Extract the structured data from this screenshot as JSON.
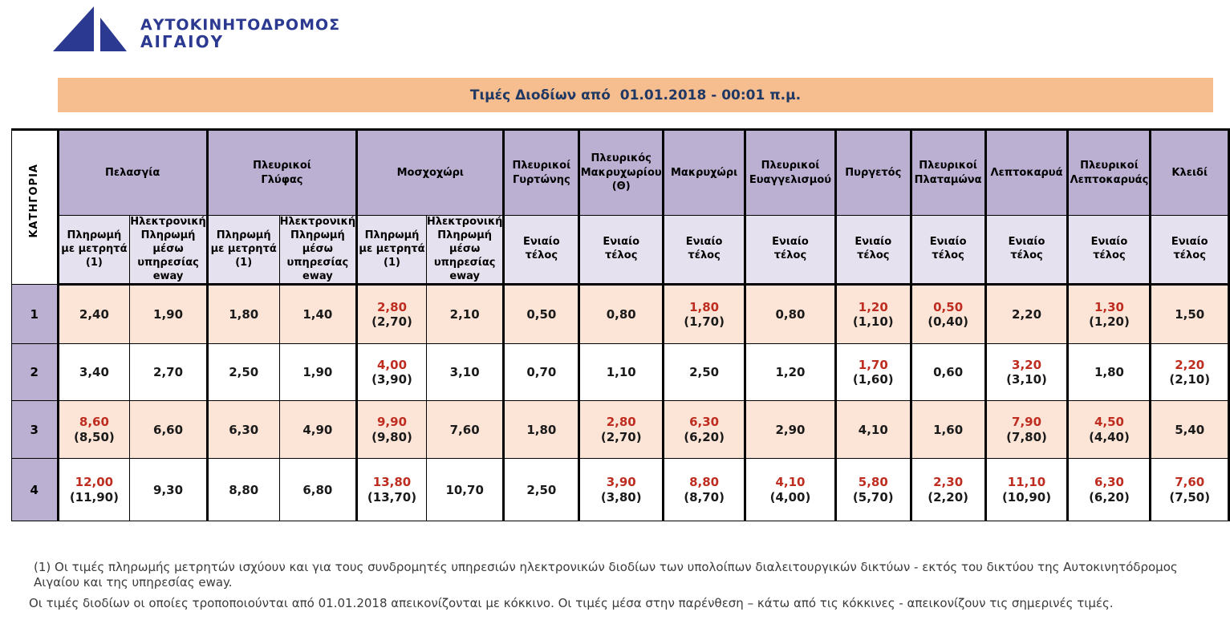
{
  "logo": {
    "line1": "ΑΥΤΟΚΙΝΗΤΟΔΡΟΜΟΣ",
    "line2": "ΑΙΓΑΙΟΥ"
  },
  "title": "Τιμές Διοδίων από  01.01.2018 - 00:01 π.μ.",
  "colors": {
    "title_bar_bg": "#F6BD8E",
    "station_header_bg": "#BCB0D2",
    "subheader_bg": "#E6E1EE",
    "odd_row_bg": "#FCE4D6",
    "even_row_bg": "#FFFFFF",
    "changed_price_red": "#BE2D20",
    "logo_navy": "#2B3991",
    "title_text_navy": "#1F3864"
  },
  "table": {
    "category_label": "ΚΑΤΗΓΟΡΙΑ",
    "subheaders": {
      "cash": "Πληρωμή\nμε μετρητά\n(1)",
      "eway": "Ηλεκτρονική\nΠληρωμή\nμέσω\nυπηρεσίας\neway",
      "flat": "Ενιαίο\nτέλος"
    },
    "stations": [
      {
        "name": "Πελασγία",
        "cols": [
          "cash",
          "eway"
        ]
      },
      {
        "name": "Πλευρικοί\nΓλύφας",
        "cols": [
          "cash",
          "eway"
        ]
      },
      {
        "name": "Μοσχοχώρι",
        "cols": [
          "cash",
          "eway"
        ]
      },
      {
        "name": "Πλευρικοί\nΓυρτώνης",
        "cols": [
          "flat"
        ]
      },
      {
        "name": "Πλευρικός\nΜακρυχωρίου\n(Θ)",
        "cols": [
          "flat"
        ]
      },
      {
        "name": "Μακρυχώρι",
        "cols": [
          "flat"
        ]
      },
      {
        "name": "Πλευρικοί\nΕυαγγελισμού",
        "cols": [
          "flat"
        ]
      },
      {
        "name": "Πυργετός",
        "cols": [
          "flat"
        ]
      },
      {
        "name": "Πλευρικοί\nΠλαταμώνα",
        "cols": [
          "flat"
        ]
      },
      {
        "name": "Λεπτοκαρυά",
        "cols": [
          "flat"
        ]
      },
      {
        "name": "Πλευρικοί\nΛεπτοκαρυάς",
        "cols": [
          "flat"
        ]
      },
      {
        "name": "Κλειδί",
        "cols": [
          "flat"
        ]
      }
    ],
    "rows": [
      {
        "category": "1",
        "cells": [
          {
            "value": "2,40"
          },
          {
            "value": "1,90"
          },
          {
            "value": "1,80"
          },
          {
            "value": "1,40"
          },
          {
            "value": "2,80",
            "current": "(2,70)",
            "changed": true
          },
          {
            "value": "2,10"
          },
          {
            "value": "0,50"
          },
          {
            "value": "0,80"
          },
          {
            "value": "1,80",
            "current": "(1,70)",
            "changed": true
          },
          {
            "value": "0,80"
          },
          {
            "value": "1,20",
            "current": "(1,10)",
            "changed": true
          },
          {
            "value": "0,50",
            "current": "(0,40)",
            "changed": true
          },
          {
            "value": "2,20"
          },
          {
            "value": "1,30",
            "current": "(1,20)",
            "changed": true
          },
          {
            "value": "1,50"
          }
        ]
      },
      {
        "category": "2",
        "cells": [
          {
            "value": "3,40"
          },
          {
            "value": "2,70"
          },
          {
            "value": "2,50"
          },
          {
            "value": "1,90"
          },
          {
            "value": "4,00",
            "current": "(3,90)",
            "changed": true
          },
          {
            "value": "3,10"
          },
          {
            "value": "0,70"
          },
          {
            "value": "1,10"
          },
          {
            "value": "2,50"
          },
          {
            "value": "1,20"
          },
          {
            "value": "1,70",
            "current": "(1,60)",
            "changed": true
          },
          {
            "value": "0,60"
          },
          {
            "value": "3,20",
            "current": "(3,10)",
            "changed": true
          },
          {
            "value": "1,80"
          },
          {
            "value": "2,20",
            "current": "(2,10)",
            "changed": true
          }
        ]
      },
      {
        "category": "3",
        "cells": [
          {
            "value": "8,60",
            "current": "(8,50)",
            "changed": true
          },
          {
            "value": "6,60"
          },
          {
            "value": "6,30"
          },
          {
            "value": "4,90"
          },
          {
            "value": "9,90",
            "current": "(9,80)",
            "changed": true
          },
          {
            "value": "7,60"
          },
          {
            "value": "1,80"
          },
          {
            "value": "2,80",
            "current": "(2,70)",
            "changed": true
          },
          {
            "value": "6,30",
            "current": "(6,20)",
            "changed": true
          },
          {
            "value": "2,90"
          },
          {
            "value": "4,10"
          },
          {
            "value": "1,60"
          },
          {
            "value": "7,90",
            "current": "(7,80)",
            "changed": true
          },
          {
            "value": "4,50",
            "current": "(4,40)",
            "changed": true
          },
          {
            "value": "5,40"
          }
        ]
      },
      {
        "category": "4",
        "cells": [
          {
            "value": "12,00",
            "current": "(11,90)",
            "changed": true
          },
          {
            "value": "9,30"
          },
          {
            "value": "8,80"
          },
          {
            "value": "6,80"
          },
          {
            "value": "13,80",
            "current": "(13,70)",
            "changed": true
          },
          {
            "value": "10,70"
          },
          {
            "value": "2,50"
          },
          {
            "value": "3,90",
            "current": "(3,80)",
            "changed": true
          },
          {
            "value": "8,80",
            "current": "(8,70)",
            "changed": true
          },
          {
            "value": "4,10",
            "current": "(4,00)",
            "changed": true
          },
          {
            "value": "5,80",
            "current": "(5,70)",
            "changed": true
          },
          {
            "value": "2,30",
            "current": "(2,20)",
            "changed": true
          },
          {
            "value": "11,10",
            "current": "(10,90)",
            "changed": true
          },
          {
            "value": "6,30",
            "current": "(6,20)",
            "changed": true
          },
          {
            "value": "7,60",
            "current": "(7,50)",
            "changed": true
          }
        ]
      }
    ]
  },
  "footnotes": [
    "(1)  Οι τιμές πληρωμής μετρητών ισχύουν και για τους συνδρομητές υπηρεσιών ηλεκτρονικών διοδίων των υπολοίπων διαλειτουργικών δικτύων - εκτός του δικτύου της Αυτοκινητόδρομος Αιγαίου και της υπηρεσίας eway.",
    "Οι τιμές διοδίων οι οποίες τροποποιούνται από 01.01.2018 απεικονίζονται με κόκκινο. Οι τιμές μέσα στην παρένθεση – κάτω από τις κόκκινες - απεικονίζουν τις σημερινές τιμές."
  ]
}
